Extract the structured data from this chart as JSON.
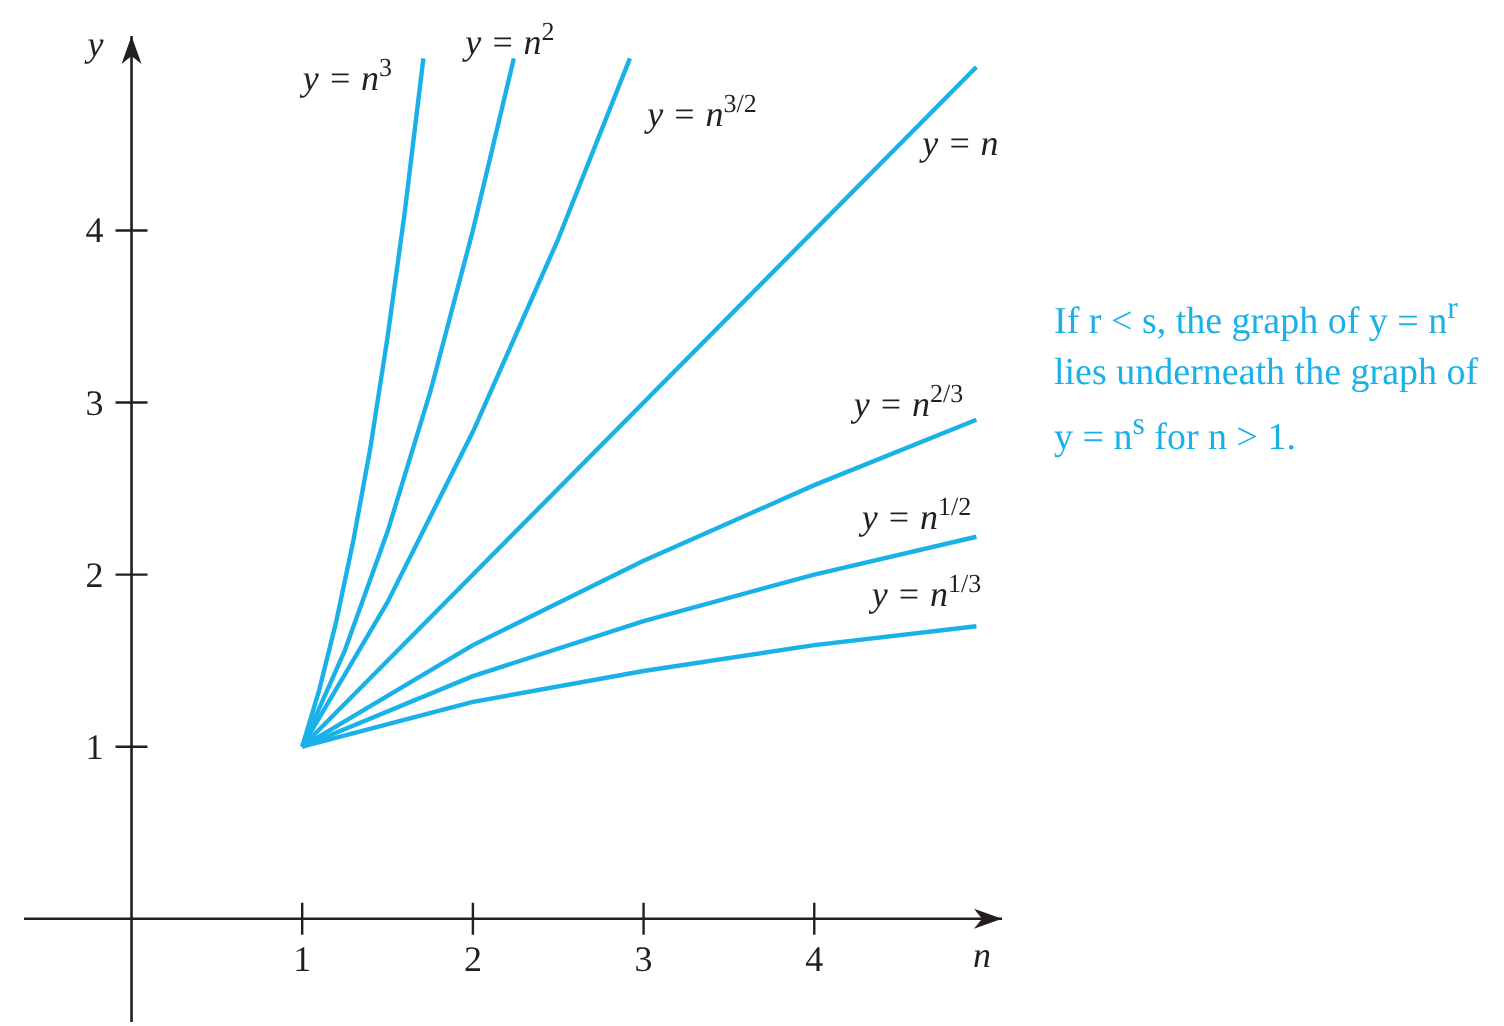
{
  "chart_data": {
    "type": "line",
    "xlabel": "n",
    "ylabel": "y",
    "xlim": [
      -0.63,
      5.1
    ],
    "ylim": [
      -0.6,
      5.13
    ],
    "xticks": [
      1,
      2,
      3,
      4
    ],
    "yticks": [
      1,
      2,
      3,
      4
    ],
    "marker": "none",
    "line_style": "solid",
    "series": [
      {
        "name": "y = n$^{3}$",
        "color": "#1ab0e8",
        "x": [
          1,
          1.1,
          1.2,
          1.3,
          1.4,
          1.5,
          1.6,
          1.71
        ],
        "values": [
          1,
          1.33,
          1.73,
          2.2,
          2.74,
          3.38,
          4.1,
          5.0
        ]
      },
      {
        "name": "y = n$^{2}$",
        "color": "#1ab0e8",
        "x": [
          1,
          1.25,
          1.5,
          1.75,
          2,
          2.24
        ],
        "values": [
          1,
          1.56,
          2.25,
          3.06,
          4,
          5.0
        ]
      },
      {
        "name": "y = n$^{3/2}$",
        "color": "#1ab0e8",
        "x": [
          1,
          1.5,
          2,
          2.5,
          2.92
        ],
        "values": [
          1,
          1.84,
          2.83,
          3.95,
          5.0
        ]
      },
      {
        "name": "y = n",
        "color": "#1ab0e8",
        "x": [
          1,
          4.95
        ],
        "values": [
          1,
          4.95
        ]
      },
      {
        "name": "y = n$^{2/3}$",
        "color": "#1ab0e8",
        "x": [
          1,
          2,
          3,
          4,
          4.95
        ],
        "values": [
          1,
          1.59,
          2.08,
          2.52,
          2.9
        ]
      },
      {
        "name": "y = n$^{1/2}$",
        "color": "#1ab0e8",
        "x": [
          1,
          2,
          3,
          4,
          4.95
        ],
        "values": [
          1,
          1.41,
          1.73,
          2,
          2.22
        ]
      },
      {
        "name": "y = n$^{1/3}$",
        "color": "#1ab0e8",
        "x": [
          1,
          2,
          3,
          4,
          4.95
        ],
        "values": [
          1,
          1.26,
          1.44,
          1.59,
          1.7
        ]
      }
    ],
    "annotations": [
      "If r < s, the graph of y = n$^{r}$ lies underneath the graph of y = n$^{s}$  for n > 1."
    ]
  }
}
